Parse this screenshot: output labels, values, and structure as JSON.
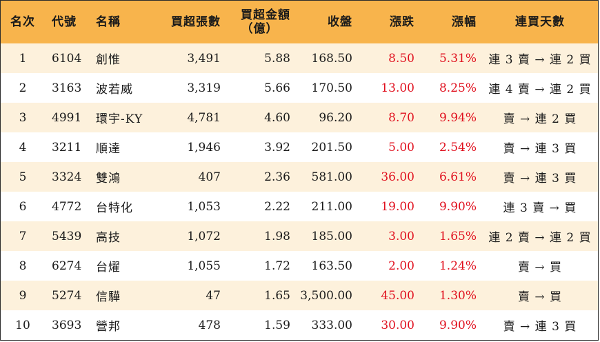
{
  "theme": {
    "header_bg": "#f8b44c",
    "stripe_bg": "#fdf1dc",
    "up_color": "#e0101e"
  },
  "headers": {
    "rank": "名次",
    "code": "代號",
    "name": "名稱",
    "net_buy_lots": "買超張數",
    "net_buy_amount_line1": "買超金額",
    "net_buy_amount_line2": "（億）",
    "close": "收盤",
    "change": "漲跌",
    "change_pct": "漲幅",
    "streak": "連買天數"
  },
  "rows": [
    {
      "rank": "1",
      "code": "6104",
      "name": "創惟",
      "lots": "3,491",
      "amount": "5.88",
      "close": "168.50",
      "change": "8.50",
      "pct": "5.31%",
      "streak": "連 3 賣 → 連 2 買"
    },
    {
      "rank": "2",
      "code": "3163",
      "name": "波若威",
      "lots": "3,319",
      "amount": "5.66",
      "close": "170.50",
      "change": "13.00",
      "pct": "8.25%",
      "streak": "連 4 賣 → 連 2 買"
    },
    {
      "rank": "3",
      "code": "4991",
      "name": "環宇-KY",
      "lots": "4,781",
      "amount": "4.60",
      "close": "96.20",
      "change": "8.70",
      "pct": "9.94%",
      "streak": "賣 → 連 2 買"
    },
    {
      "rank": "4",
      "code": "3211",
      "name": "順達",
      "lots": "1,946",
      "amount": "3.92",
      "close": "201.50",
      "change": "5.00",
      "pct": "2.54%",
      "streak": "賣 → 連 3 買"
    },
    {
      "rank": "5",
      "code": "3324",
      "name": "雙鴻",
      "lots": "407",
      "amount": "2.36",
      "close": "581.00",
      "change": "36.00",
      "pct": "6.61%",
      "streak": "賣 → 連 3 買"
    },
    {
      "rank": "6",
      "code": "4772",
      "name": "台特化",
      "lots": "1,053",
      "amount": "2.22",
      "close": "211.00",
      "change": "19.00",
      "pct": "9.90%",
      "streak": "連 3 賣 → 買"
    },
    {
      "rank": "7",
      "code": "5439",
      "name": "高技",
      "lots": "1,072",
      "amount": "1.98",
      "close": "185.00",
      "change": "3.00",
      "pct": "1.65%",
      "streak": "連 2 賣 → 連 2 買"
    },
    {
      "rank": "8",
      "code": "6274",
      "name": "台燿",
      "lots": "1,055",
      "amount": "1.72",
      "close": "163.50",
      "change": "2.00",
      "pct": "1.24%",
      "streak": "賣 → 買"
    },
    {
      "rank": "9",
      "code": "5274",
      "name": "信驊",
      "lots": "47",
      "amount": "1.65",
      "close": "3,500.00",
      "change": "45.00",
      "pct": "1.30%",
      "streak": "賣 → 買"
    },
    {
      "rank": "10",
      "code": "3693",
      "name": "營邦",
      "lots": "478",
      "amount": "1.59",
      "close": "333.00",
      "change": "30.00",
      "pct": "9.90%",
      "streak": "賣 → 連 3 買"
    }
  ]
}
